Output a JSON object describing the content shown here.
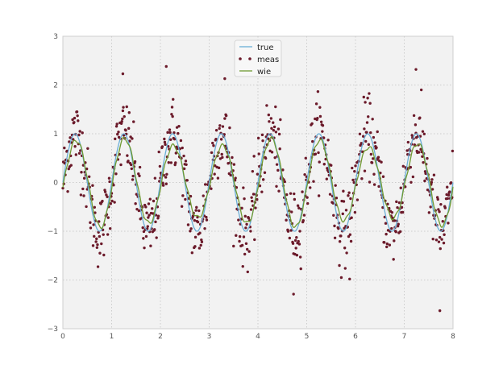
{
  "chart_data": {
    "type": "line",
    "title": "",
    "xlabel": "",
    "ylabel": "",
    "xlim": [
      0,
      8
    ],
    "ylim": [
      -3,
      3
    ],
    "xticks": [
      0,
      1,
      2,
      3,
      4,
      5,
      6,
      7,
      8
    ],
    "yticks": [
      -3,
      -2,
      -1,
      0,
      1,
      2,
      3
    ],
    "grid": true,
    "legend_position": "upper center",
    "colors": {
      "true": "#6aaed6",
      "meas": "#6b1a2a",
      "wie": "#6f9a32",
      "axes_bg": "#f2f2f2",
      "grid": "#cccccc",
      "spine": "#cfcfcf"
    },
    "series": [
      {
        "name": "true",
        "kind": "line",
        "function": "sin(2*pi*x)",
        "x_range": [
          0,
          8
        ]
      },
      {
        "name": "meas",
        "kind": "scatter",
        "function": "sin(2*pi*x) + noise",
        "noise_std": 0.5,
        "count": 800
      },
      {
        "name": "wie",
        "kind": "line",
        "function": "smoothed estimate ~ 0.85*sin(2*pi*x)",
        "x_range": [
          0,
          8
        ]
      }
    ],
    "outliers": [
      {
        "x": 1.23,
        "y": 2.23
      },
      {
        "x": 2.12,
        "y": 2.38
      },
      {
        "x": 3.32,
        "y": 2.13
      },
      {
        "x": 7.24,
        "y": 2.32
      },
      {
        "x": 4.73,
        "y": -2.29
      },
      {
        "x": 7.73,
        "y": -2.63
      },
      {
        "x": 5.88,
        "y": -1.98
      }
    ]
  },
  "legend": {
    "items": [
      {
        "label": "true"
      },
      {
        "label": "meas"
      },
      {
        "label": "wie"
      }
    ]
  }
}
